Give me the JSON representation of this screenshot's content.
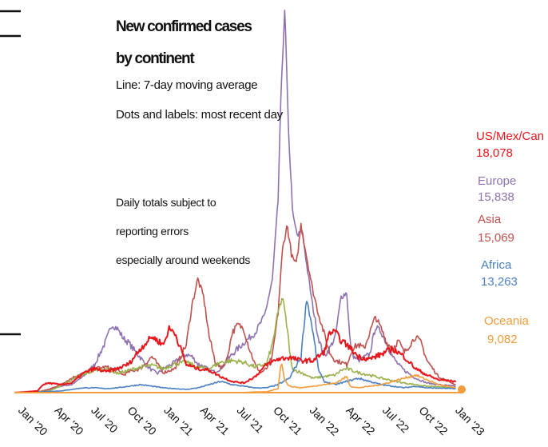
{
  "chart_data": {
    "type": "line",
    "title_lines": [
      "New confirmed cases",
      "by continent"
    ],
    "subtitle_lines": [
      "Line: 7-day moving average",
      "Dots and labels: most recent day"
    ],
    "annotation_lines": [
      "Daily totals subject to",
      "reporting errors",
      "especially around weekends"
    ],
    "x_ticks": [
      "Jan '20",
      "Apr '20",
      "Jul '20",
      "Oct '20",
      "Jan '21",
      "Apr '21",
      "Jul '21",
      "Oct '21",
      "Jan '22",
      "Apr '22",
      "Jul '22",
      "Oct '22",
      "Jan '23"
    ],
    "x_range": [
      "2020-01-01",
      "2023-02-10"
    ],
    "grid": false,
    "legend": "labels at right end of lines",
    "latest": [
      {
        "name": "US/Mex/Can",
        "value": "18,078",
        "color": "#e8151b"
      },
      {
        "name": "Europe",
        "value": "15,838",
        "color": "#8e72b0"
      },
      {
        "name": "Asia",
        "value": "15,069",
        "color": "#c0504d"
      },
      {
        "name": "Africa",
        "value": "13,263",
        "color": "#4a7fc1"
      },
      {
        "name": "Oceania",
        "value": "9,082",
        "color": "#f39c3c"
      }
    ],
    "series": [
      {
        "color": "#8e72b0",
        "trend": [
          [
            0,
            0
          ],
          [
            2,
            0
          ],
          [
            2.5,
            2
          ],
          [
            3,
            4
          ],
          [
            3.5,
            5
          ],
          [
            4,
            8
          ],
          [
            5,
            10
          ],
          [
            6,
            20
          ],
          [
            7,
            35
          ],
          [
            8,
            65
          ],
          [
            8.5,
            85
          ],
          [
            9,
            80
          ],
          [
            9.5,
            68
          ],
          [
            10,
            62
          ],
          [
            10.5,
            52
          ],
          [
            11,
            44
          ],
          [
            11.5,
            34
          ],
          [
            12,
            28
          ],
          [
            12.5,
            24
          ],
          [
            13,
            30
          ],
          [
            14,
            38
          ],
          [
            15,
            48
          ],
          [
            15.5,
            45
          ],
          [
            16,
            36
          ],
          [
            16.5,
            33
          ],
          [
            17,
            28
          ],
          [
            17.5,
            26
          ],
          [
            18,
            30
          ],
          [
            19,
            48
          ],
          [
            20,
            62
          ],
          [
            21,
            75
          ],
          [
            21.8,
            95
          ],
          [
            22.5,
            140
          ],
          [
            23,
            240
          ],
          [
            23.3,
            390
          ],
          [
            23.6,
            480
          ],
          [
            23.9,
            330
          ],
          [
            24.3,
            220
          ],
          [
            24.7,
            195
          ],
          [
            25.1,
            205
          ],
          [
            25.5,
            160
          ],
          [
            26,
            110
          ],
          [
            26.5,
            70
          ],
          [
            27,
            45
          ],
          [
            27.5,
            55
          ],
          [
            28,
            70
          ],
          [
            28.5,
            120
          ],
          [
            29,
            125
          ],
          [
            29.3,
            60
          ],
          [
            29.6,
            45
          ],
          [
            30,
            40
          ],
          [
            31,
            48
          ],
          [
            31.5,
            82
          ],
          [
            32,
            76
          ],
          [
            32.5,
            60
          ],
          [
            33,
            45
          ],
          [
            33.5,
            35
          ],
          [
            34,
            28
          ],
          [
            35,
            18
          ],
          [
            36,
            12
          ],
          [
            37,
            10
          ],
          [
            38.5,
            8
          ]
        ]
      },
      {
        "color": "#c0504d",
        "trend": [
          [
            0,
            0
          ],
          [
            2,
            1
          ],
          [
            3,
            4
          ],
          [
            4,
            10
          ],
          [
            5,
            18
          ],
          [
            5.5,
            22
          ],
          [
            6,
            24
          ],
          [
            6.5,
            28
          ],
          [
            7,
            30
          ],
          [
            8,
            32
          ],
          [
            9,
            28
          ],
          [
            9.5,
            22
          ],
          [
            10,
            26
          ],
          [
            11,
            30
          ],
          [
            12,
            45
          ],
          [
            13,
            25
          ],
          [
            14,
            30
          ],
          [
            15,
            60
          ],
          [
            15.5,
            110
          ],
          [
            16,
            142
          ],
          [
            16.5,
            120
          ],
          [
            17,
            70
          ],
          [
            17.5,
            40
          ],
          [
            18,
            30
          ],
          [
            18.5,
            40
          ],
          [
            19,
            75
          ],
          [
            19.5,
            85
          ],
          [
            20,
            80
          ],
          [
            20.5,
            55
          ],
          [
            21,
            35
          ],
          [
            21.5,
            25
          ],
          [
            22,
            30
          ],
          [
            22.5,
            45
          ],
          [
            23,
            100
          ],
          [
            23.4,
            180
          ],
          [
            23.8,
            210
          ],
          [
            24.2,
            170
          ],
          [
            24.6,
            160
          ],
          [
            25,
            210
          ],
          [
            25.5,
            170
          ],
          [
            26,
            130
          ],
          [
            26.5,
            100
          ],
          [
            27,
            75
          ],
          [
            27.5,
            50
          ],
          [
            28,
            40
          ],
          [
            28.5,
            38
          ],
          [
            29,
            35
          ],
          [
            29.5,
            55
          ],
          [
            30,
            60
          ],
          [
            30.5,
            55
          ],
          [
            31,
            75
          ],
          [
            31.5,
            95
          ],
          [
            32,
            80
          ],
          [
            32.5,
            62
          ],
          [
            33,
            55
          ],
          [
            33.5,
            65
          ],
          [
            34,
            50
          ],
          [
            34.5,
            60
          ],
          [
            35,
            70
          ],
          [
            35.5,
            62
          ],
          [
            36,
            40
          ],
          [
            37,
            20
          ],
          [
            38.5,
            10
          ]
        ]
      },
      {
        "color": "#9ab04a",
        "trend": [
          [
            0,
            0
          ],
          [
            3,
            2
          ],
          [
            4,
            8
          ],
          [
            5,
            16
          ],
          [
            6,
            22
          ],
          [
            7,
            28
          ],
          [
            8,
            30
          ],
          [
            9,
            24
          ],
          [
            10,
            28
          ],
          [
            11,
            32
          ],
          [
            12,
            34
          ],
          [
            13,
            30
          ],
          [
            14,
            36
          ],
          [
            15,
            38
          ],
          [
            16,
            32
          ],
          [
            17,
            30
          ],
          [
            18,
            38
          ],
          [
            19,
            40
          ],
          [
            20,
            38
          ],
          [
            21,
            32
          ],
          [
            22,
            36
          ],
          [
            22.5,
            60
          ],
          [
            23,
            100
          ],
          [
            23.4,
            120
          ],
          [
            23.8,
            80
          ],
          [
            24.2,
            30
          ],
          [
            25,
            25
          ],
          [
            25.5,
            22
          ],
          [
            26,
            18
          ],
          [
            27,
            20
          ],
          [
            28,
            22
          ],
          [
            28.5,
            28
          ],
          [
            29,
            30
          ],
          [
            30,
            25
          ],
          [
            31,
            22
          ],
          [
            32,
            18
          ],
          [
            33,
            15
          ],
          [
            34,
            12
          ],
          [
            35,
            10
          ],
          [
            36,
            8
          ],
          [
            38.5,
            6
          ]
        ]
      },
      {
        "color": "#4a7fc1",
        "trend": [
          [
            0,
            0
          ],
          [
            4,
            2
          ],
          [
            5,
            4
          ],
          [
            6,
            6
          ],
          [
            7,
            6
          ],
          [
            8,
            5
          ],
          [
            9,
            6
          ],
          [
            10,
            8
          ],
          [
            11,
            10
          ],
          [
            12,
            8
          ],
          [
            13,
            6
          ],
          [
            14,
            5
          ],
          [
            15,
            4
          ],
          [
            16,
            6
          ],
          [
            17,
            10
          ],
          [
            18,
            14
          ],
          [
            19,
            10
          ],
          [
            20,
            8
          ],
          [
            21,
            6
          ],
          [
            22,
            6
          ],
          [
            23,
            10
          ],
          [
            24,
            18
          ],
          [
            25,
            45
          ],
          [
            25.5,
            118
          ],
          [
            26,
            80
          ],
          [
            26.5,
            30
          ],
          [
            27,
            14
          ],
          [
            28,
            10
          ],
          [
            29,
            14
          ],
          [
            30,
            18
          ],
          [
            31,
            14
          ],
          [
            32,
            10
          ],
          [
            33,
            8
          ],
          [
            34,
            6
          ],
          [
            35,
            8
          ],
          [
            36,
            6
          ],
          [
            38.5,
            5
          ]
        ]
      },
      {
        "color": "#f39c3c",
        "trend": [
          [
            0,
            0
          ],
          [
            20,
            0
          ],
          [
            21,
            1
          ],
          [
            22,
            1
          ],
          [
            23,
            5
          ],
          [
            23.3,
            40
          ],
          [
            23.6,
            15
          ],
          [
            24,
            8
          ],
          [
            25,
            6
          ],
          [
            26,
            8
          ],
          [
            27,
            10
          ],
          [
            28,
            12
          ],
          [
            29,
            20
          ],
          [
            29.3,
            8
          ],
          [
            30,
            6
          ],
          [
            31,
            8
          ],
          [
            32,
            10
          ],
          [
            33,
            14
          ],
          [
            34,
            18
          ],
          [
            35,
            22
          ],
          [
            36,
            16
          ],
          [
            37,
            10
          ],
          [
            38.5,
            6
          ]
        ]
      },
      {
        "color": "#e8151b",
        "trend": [
          [
            0,
            0
          ],
          [
            2,
            2
          ],
          [
            2.5,
            10
          ],
          [
            3,
            12
          ],
          [
            4,
            10
          ],
          [
            5,
            12
          ],
          [
            6,
            24
          ],
          [
            7,
            30
          ],
          [
            8,
            26
          ],
          [
            9,
            30
          ],
          [
            10,
            36
          ],
          [
            11,
            55
          ],
          [
            12,
            70
          ],
          [
            12.5,
            65
          ],
          [
            13,
            60
          ],
          [
            13.5,
            80
          ],
          [
            14,
            75
          ],
          [
            14.5,
            55
          ],
          [
            15,
            35
          ],
          [
            16,
            30
          ],
          [
            17,
            28
          ],
          [
            18,
            20
          ],
          [
            19,
            14
          ],
          [
            20,
            12
          ],
          [
            21,
            20
          ],
          [
            22,
            35
          ],
          [
            23,
            42
          ],
          [
            24,
            44
          ],
          [
            25,
            40
          ],
          [
            26,
            40
          ],
          [
            27,
            50
          ],
          [
            27.5,
            75
          ],
          [
            28,
            76
          ],
          [
            28.5,
            65
          ],
          [
            29,
            60
          ],
          [
            30,
            45
          ],
          [
            31,
            42
          ],
          [
            32,
            48
          ],
          [
            33,
            55
          ],
          [
            34,
            45
          ],
          [
            35,
            30
          ],
          [
            36,
            22
          ],
          [
            37,
            16
          ],
          [
            38.5,
            14
          ]
        ]
      }
    ]
  }
}
